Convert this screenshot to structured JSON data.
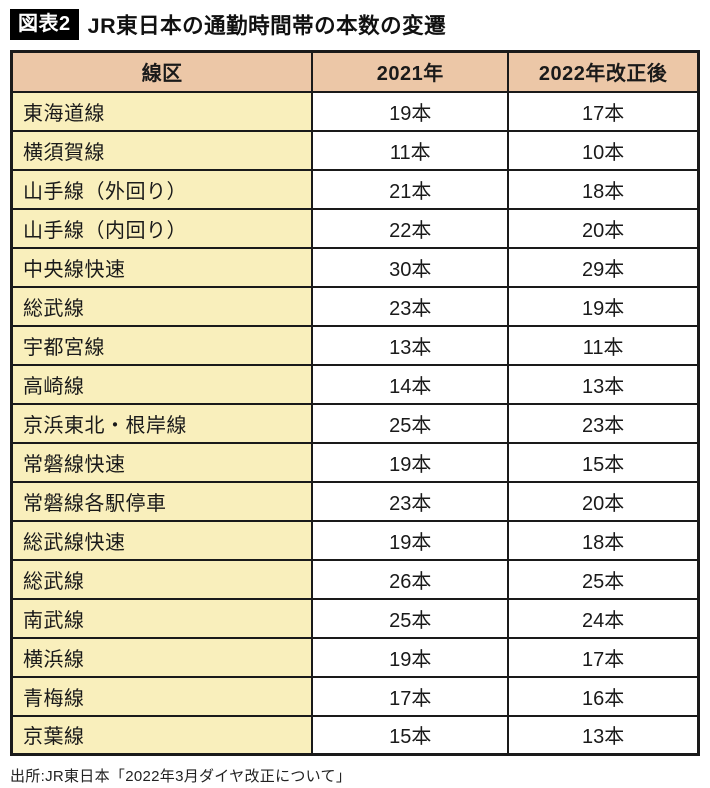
{
  "header": {
    "figure_label": "図表2",
    "title": "JR東日本の通勤時間帯の本数の変遷"
  },
  "source": "出所:JR東日本「2022年3月ダイヤ改正について」",
  "colors": {
    "header_bg": "#ecc7a7",
    "line_col_bg": "#f9efbc",
    "border": "#1a1a1a",
    "badge_bg": "#000000",
    "badge_text": "#ffffff"
  },
  "chart_data": {
    "type": "table",
    "title": "図表2 JR東日本の通勤時間帯の本数の変遷",
    "columns": [
      "線区",
      "2021年",
      "2022年改正後"
    ],
    "unit": "本",
    "rows": [
      {
        "line": "東海道線",
        "y2021": 19,
        "y2022": 17
      },
      {
        "line": "横須賀線",
        "y2021": 11,
        "y2022": 10
      },
      {
        "line": "山手線（外回り）",
        "y2021": 21,
        "y2022": 18
      },
      {
        "line": "山手線（内回り）",
        "y2021": 22,
        "y2022": 20
      },
      {
        "line": "中央線快速",
        "y2021": 30,
        "y2022": 29
      },
      {
        "line": "総武線",
        "y2021": 23,
        "y2022": 19
      },
      {
        "line": "宇都宮線",
        "y2021": 13,
        "y2022": 11
      },
      {
        "line": "高崎線",
        "y2021": 14,
        "y2022": 13
      },
      {
        "line": "京浜東北・根岸線",
        "y2021": 25,
        "y2022": 23
      },
      {
        "line": "常磐線快速",
        "y2021": 19,
        "y2022": 15
      },
      {
        "line": "常磐線各駅停車",
        "y2021": 23,
        "y2022": 20
      },
      {
        "line": "総武線快速",
        "y2021": 19,
        "y2022": 18
      },
      {
        "line": "総武線",
        "y2021": 26,
        "y2022": 25
      },
      {
        "line": "南武線",
        "y2021": 25,
        "y2022": 24
      },
      {
        "line": "横浜線",
        "y2021": 19,
        "y2022": 17
      },
      {
        "line": "青梅線",
        "y2021": 17,
        "y2022": 16
      },
      {
        "line": "京葉線",
        "y2021": 15,
        "y2022": 13
      }
    ],
    "legend_position": "none",
    "grid": true
  }
}
